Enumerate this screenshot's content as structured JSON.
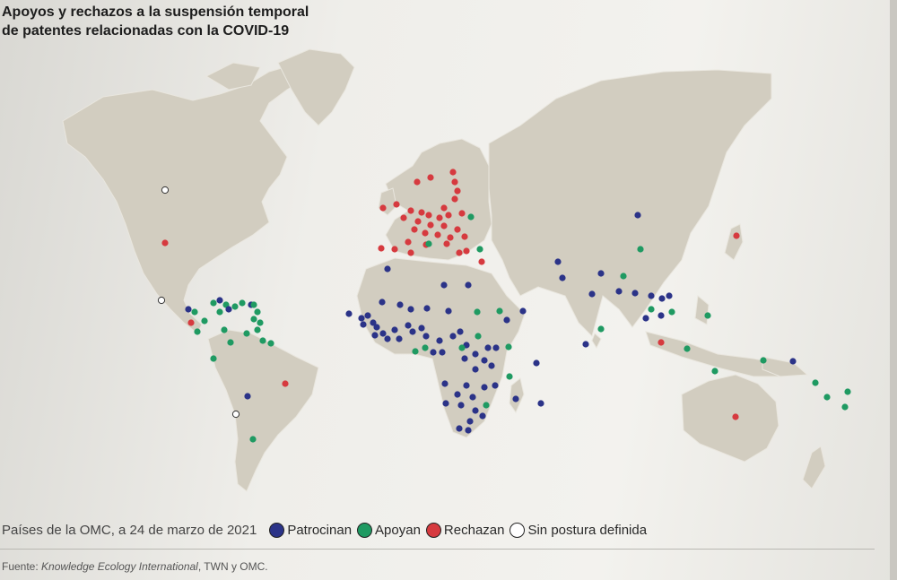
{
  "title": {
    "line1": "Apoyos y rechazos a la suspensión temporal",
    "line2": "de patentes relacionadas con la COVID-19"
  },
  "legend": {
    "date_label": "Países de la OMC, a 24 de marzo de 2021",
    "items": [
      {
        "label": "Patrocinan",
        "color": "#2b3388",
        "filled": true
      },
      {
        "label": "Apoyan",
        "color": "#1f9a62",
        "filled": true
      },
      {
        "label": "Rechazan",
        "color": "#d63a3f",
        "filled": true
      },
      {
        "label": "Sin postura definida",
        "color": "#ffffff",
        "filled": false
      }
    ]
  },
  "source": {
    "prefix": "Fuente:",
    "italic": "Knowledge Ecology International",
    "suffix": ", TWN y OMC."
  },
  "colors": {
    "land": "#d2cdc0",
    "land_stroke": "#e9e6de",
    "patrocinan": "#2b3388",
    "apoyan": "#1f9a62",
    "rechazan": "#d63a3f",
    "sin_postura": "#ffffff"
  }
}
